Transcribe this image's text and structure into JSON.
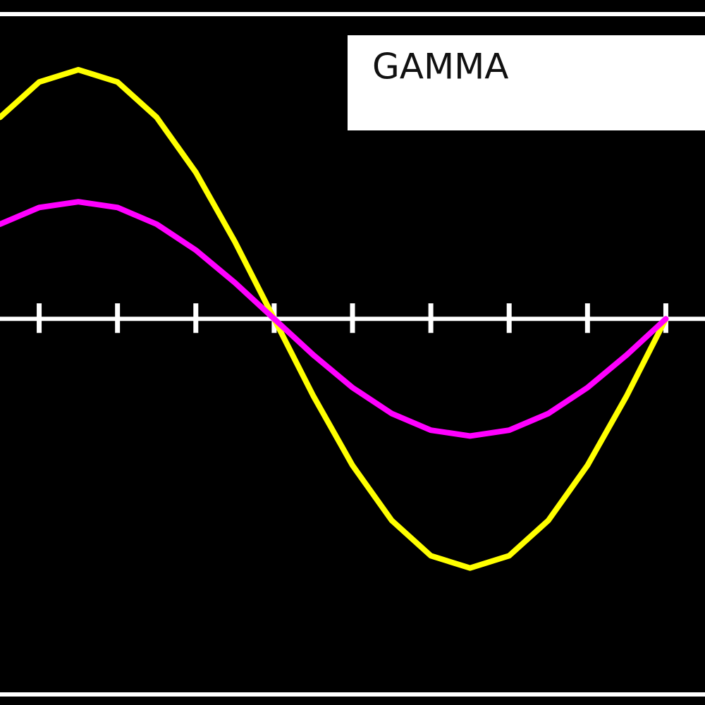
{
  "chart_data": {
    "type": "line",
    "title": "GAMMA",
    "x": [
      0.5,
      1,
      1.5,
      2,
      2.5,
      3,
      3.5,
      4,
      4.5,
      5,
      5.5,
      6,
      6.5,
      7,
      7.5,
      8,
      8.5,
      9
    ],
    "series": [
      {
        "color": "#ffff00",
        "values": [
          0.809,
          0.951,
          1,
          0.951,
          0.809,
          0.588,
          0.309,
          0,
          -0.309,
          -0.588,
          -0.809,
          -0.951,
          -1,
          -0.951,
          -0.809,
          -0.588,
          -0.309,
          0
        ]
      },
      {
        "color": "#ff00ff",
        "values": [
          0.38,
          0.447,
          0.47,
          0.447,
          0.38,
          0.276,
          0.145,
          0,
          -0.145,
          -0.276,
          -0.38,
          -0.447,
          -0.47,
          -0.447,
          -0.38,
          -0.276,
          -0.145,
          0
        ]
      }
    ],
    "xlim": [
      0.5,
      9.5
    ],
    "xticks": [
      1,
      2,
      3,
      4,
      5,
      6,
      7,
      8,
      9
    ],
    "ylim": [
      -1.55,
      1.28
    ]
  }
}
